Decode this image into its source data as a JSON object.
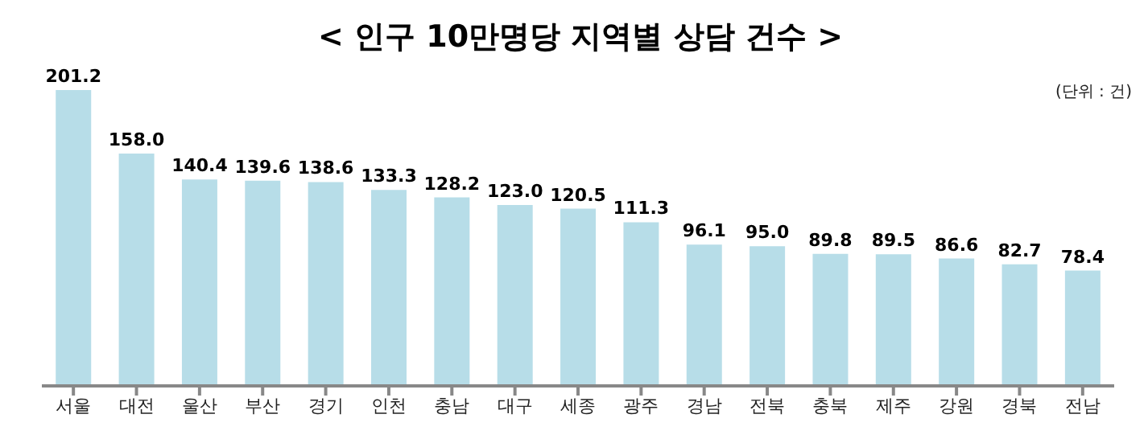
{
  "chart_data": {
    "type": "bar",
    "title": "< 인구 10만명당 지역별 상담 건수 >",
    "annotations": [
      "(단위 : 건)"
    ],
    "categories": [
      "서울",
      "대전",
      "울산",
      "부산",
      "경기",
      "인천",
      "충남",
      "대구",
      "세종",
      "광주",
      "경남",
      "전북",
      "충북",
      "제주",
      "강원",
      "경북",
      "전남"
    ],
    "values": [
      201.2,
      158.0,
      140.4,
      139.6,
      138.6,
      133.3,
      128.2,
      123.0,
      120.5,
      111.3,
      96.1,
      95.0,
      89.8,
      89.5,
      86.6,
      82.7,
      78.4
    ],
    "value_labels": [
      "201.2",
      "158.0",
      "140.4",
      "139.6",
      "138.6",
      "133.3",
      "128.2",
      "123.0",
      "120.5",
      "111.3",
      "96.1",
      "95.0",
      "89.8",
      "89.5",
      "86.6",
      "82.7",
      "78.4"
    ],
    "color": "#b7dde8",
    "tick_labels": "x",
    "grid": false,
    "legend": false
  }
}
